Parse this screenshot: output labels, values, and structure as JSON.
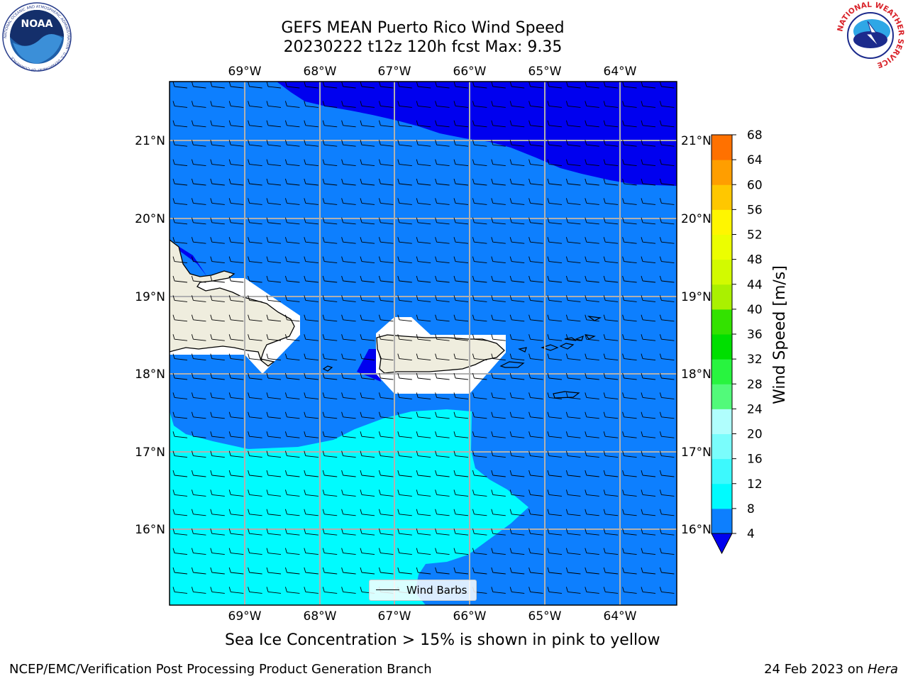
{
  "title": {
    "line1": "GEFS MEAN Puerto Rico Wind Speed",
    "line2": "20230222 t12z 120h fcst   Max: 9.35"
  },
  "map": {
    "lon_range": [
      -70,
      -63.25
    ],
    "lat_range": [
      15.0,
      21.75
    ],
    "lon_ticks": [
      "69°W",
      "68°W",
      "67°W",
      "66°W",
      "65°W",
      "64°W"
    ],
    "lon_tick_values": [
      -69,
      -68,
      -67,
      -66,
      -65,
      -64
    ],
    "lat_ticks": [
      "21°N",
      "20°N",
      "19°N",
      "18°N",
      "17°N",
      "16°N"
    ],
    "lat_tick_values": [
      21,
      20,
      19,
      18,
      17,
      16
    ],
    "gridlines": true,
    "wind_barb_direction": "from east",
    "fill_colors": {
      "4-8": "#0d7ffe",
      "below-4": "#0000ef",
      "8-12": "#00fbfe",
      "land": "#efedde",
      "masked": "#ffffff"
    }
  },
  "colorbar": {
    "label": "Wind Speed [m/s]",
    "ticks": [
      "68",
      "64",
      "60",
      "56",
      "52",
      "48",
      "44",
      "40",
      "36",
      "32",
      "28",
      "24",
      "20",
      "16",
      "12",
      "8",
      "4"
    ],
    "levels": [
      4,
      8,
      12,
      16,
      20,
      24,
      28,
      32,
      36,
      40,
      44,
      48,
      52,
      56,
      60,
      64,
      68
    ],
    "colors": [
      "#0d7ffe",
      "#00fbfe",
      "#3df9fd",
      "#7afdfc",
      "#b0fefd",
      "#52fa7a",
      "#28f43f",
      "#00df00",
      "#33e200",
      "#aaf000",
      "#d2fa00",
      "#ecfe00",
      "#fff600",
      "#ffc700",
      "#ff9e00",
      "#ff7100",
      "#ff4600",
      "#ff0a00"
    ],
    "under_color": "#0000ef"
  },
  "legend": {
    "label": "Wind Barbs"
  },
  "ice_caption": "Sea Ice Concentration > 15% is shown in pink to yellow",
  "footer": {
    "left": "NCEP/EMC/Verification Post Processing Product Generation Branch",
    "right_date": "24 Feb 2023 on ",
    "right_machine": "Hera"
  },
  "logos": {
    "noaa_text": "NOAA",
    "nws_text": "NATIONAL WEATHER SERVICE",
    "noaa_ring_text": "NATIONAL OCEANIC AND ATMOSPHERIC ADMINISTRATION · U.S. DEPARTMENT OF COMMERCE"
  }
}
